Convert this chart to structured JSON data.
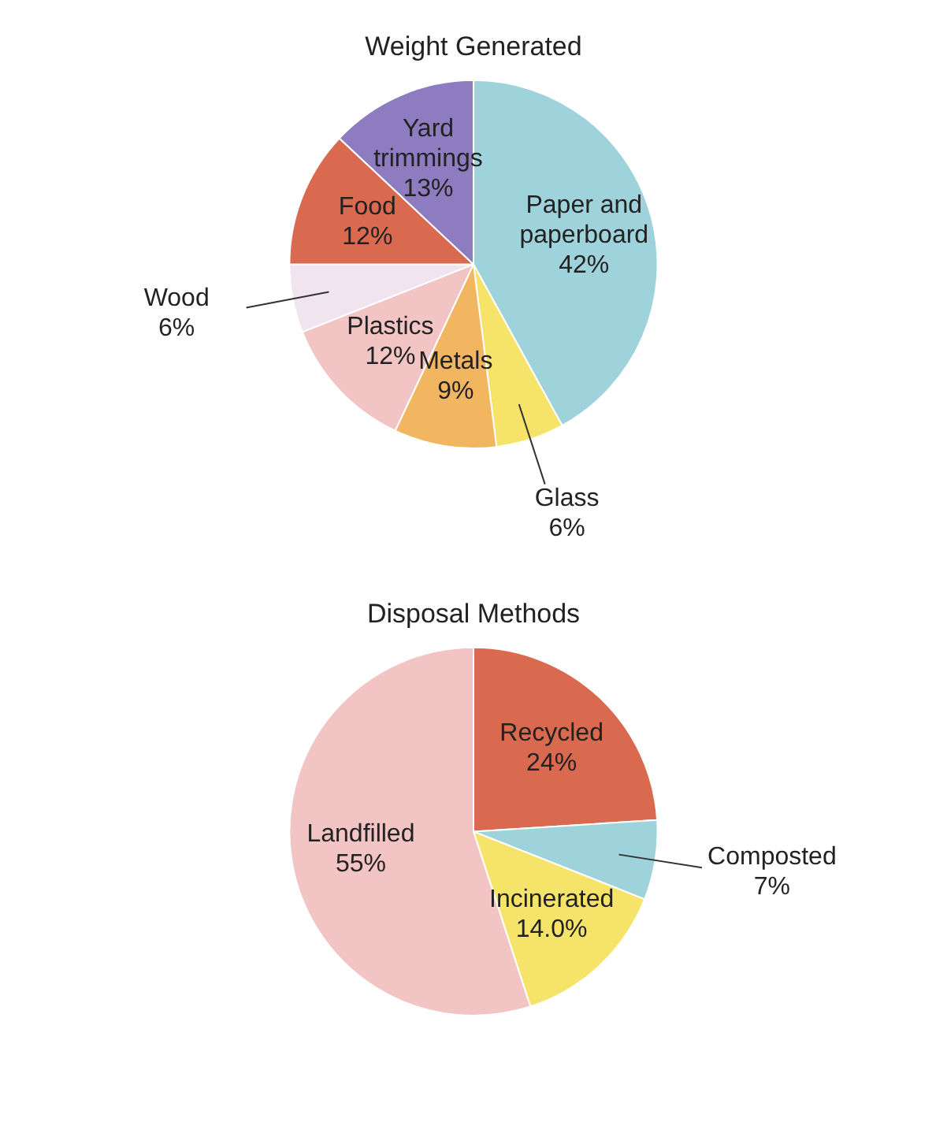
{
  "chart_data": [
    {
      "type": "pie",
      "title": "Weight Generated",
      "categories": [
        "Paper and paperboard",
        "Glass",
        "Metals",
        "Plastics",
        "Wood",
        "Food",
        "Yard trimmings"
      ],
      "values": [
        42,
        6,
        9,
        12,
        6,
        12,
        13
      ],
      "value_labels": [
        "42%",
        "6%",
        "9%",
        "12%",
        "6%",
        "12%",
        "13%"
      ],
      "colors": [
        "#9fd3dc",
        "#f6e46a",
        "#f2b560",
        "#f2c4c4",
        "#f0e4ee",
        "#d9694f",
        "#8e7cc0"
      ]
    },
    {
      "type": "pie",
      "title": "Disposal Methods",
      "categories": [
        "Recycled",
        "Composted",
        "Incinerated",
        "Landfilled"
      ],
      "values": [
        24,
        7,
        14.0,
        55
      ],
      "value_labels": [
        "24%",
        "7%",
        "14.0%",
        "55%"
      ],
      "colors": [
        "#d9694f",
        "#9fd3dc",
        "#f6e46a",
        "#f2c4c4"
      ]
    }
  ]
}
